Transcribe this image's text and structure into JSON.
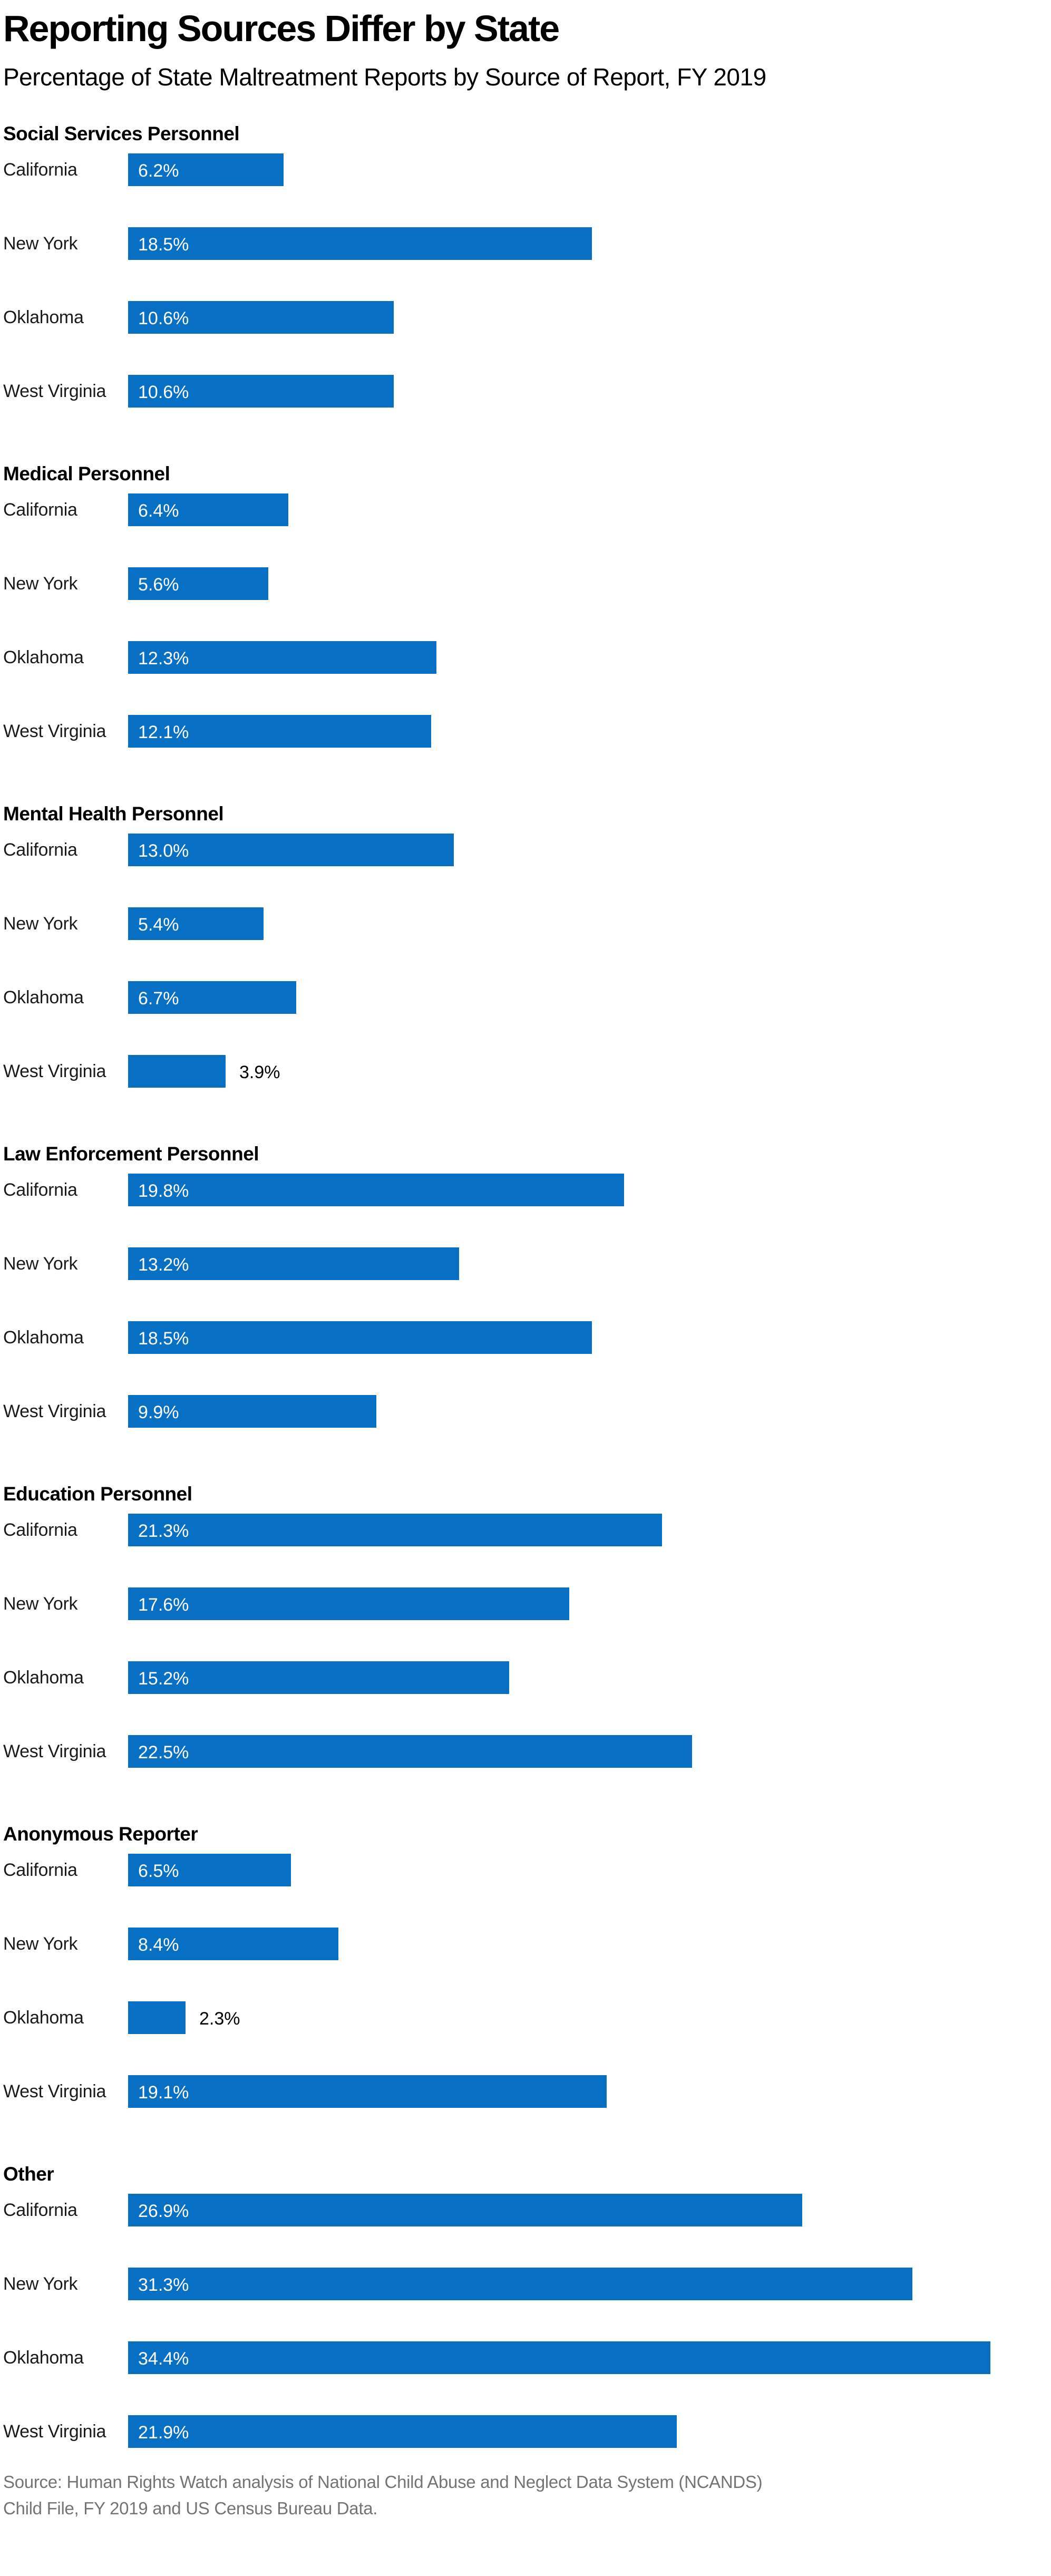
{
  "title": "Reporting Sources Differ by State",
  "subtitle": "Percentage of State Maltreatment Reports by Source of Report, FY 2019",
  "source": {
    "line1": "Source: Human Rights Watch analysis of National Child Abuse and Neglect Data System (NCANDS)",
    "line2": "Child File, FY 2019 and US Census Bureau Data."
  },
  "colors": {
    "bar": "#0770c4",
    "title_text": "#000000",
    "state_label_text": "#1a1a1a",
    "value_label_inside": "#ffffff",
    "value_label_outside": "#000000",
    "source_text": "#747474"
  },
  "chart_data": {
    "type": "bar",
    "orientation": "horizontal",
    "title": "Reporting Sources Differ by State",
    "subtitle": "Percentage of State Maltreatment Reports by Source of Report, FY 2019",
    "unit": "%",
    "xlim": [
      0,
      35
    ],
    "grid": false,
    "legend": false,
    "value_labels": true,
    "categories": [
      "California",
      "New York",
      "Oklahoma",
      "West Virginia"
    ],
    "groups": [
      {
        "heading": "Social Services Personnel",
        "rows": [
          {
            "state": "California",
            "value": 6.2,
            "value_label": "6.2%"
          },
          {
            "state": "New York",
            "value": 18.5,
            "value_label": "18.5%"
          },
          {
            "state": "Oklahoma",
            "value": 10.6,
            "value_label": "10.6%"
          },
          {
            "state": "West Virginia",
            "value": 10.6,
            "value_label": "10.6%"
          }
        ]
      },
      {
        "heading": "Medical Personnel",
        "rows": [
          {
            "state": "California",
            "value": 6.4,
            "value_label": "6.4%"
          },
          {
            "state": "New York",
            "value": 5.6,
            "value_label": "5.6%"
          },
          {
            "state": "Oklahoma",
            "value": 12.3,
            "value_label": "12.3%"
          },
          {
            "state": "West Virginia",
            "value": 12.1,
            "value_label": "12.1%"
          }
        ]
      },
      {
        "heading": "Mental Health Personnel",
        "rows": [
          {
            "state": "California",
            "value": 13.0,
            "value_label": "13.0%"
          },
          {
            "state": "New York",
            "value": 5.4,
            "value_label": "5.4%"
          },
          {
            "state": "Oklahoma",
            "value": 6.7,
            "value_label": "6.7%"
          },
          {
            "state": "West Virginia",
            "value": 3.9,
            "value_label": "3.9%"
          }
        ]
      },
      {
        "heading": "Law Enforcement Personnel",
        "rows": [
          {
            "state": "California",
            "value": 19.8,
            "value_label": "19.8%"
          },
          {
            "state": "New York",
            "value": 13.2,
            "value_label": "13.2%"
          },
          {
            "state": "Oklahoma",
            "value": 18.5,
            "value_label": "18.5%"
          },
          {
            "state": "West Virginia",
            "value": 9.9,
            "value_label": "9.9%"
          }
        ]
      },
      {
        "heading": "Education Personnel",
        "rows": [
          {
            "state": "California",
            "value": 21.3,
            "value_label": "21.3%"
          },
          {
            "state": "New York",
            "value": 17.6,
            "value_label": "17.6%"
          },
          {
            "state": "Oklahoma",
            "value": 15.2,
            "value_label": "15.2%"
          },
          {
            "state": "West Virginia",
            "value": 22.5,
            "value_label": "22.5%"
          }
        ]
      },
      {
        "heading": "Anonymous Reporter",
        "rows": [
          {
            "state": "California",
            "value": 6.5,
            "value_label": "6.5%"
          },
          {
            "state": "New York",
            "value": 8.4,
            "value_label": "8.4%"
          },
          {
            "state": "Oklahoma",
            "value": 2.3,
            "value_label": "2.3%"
          },
          {
            "state": "West Virginia",
            "value": 19.1,
            "value_label": "19.1%"
          }
        ]
      },
      {
        "heading": "Other",
        "rows": [
          {
            "state": "California",
            "value": 26.9,
            "value_label": "26.9%"
          },
          {
            "state": "New York",
            "value": 31.3,
            "value_label": "31.3%"
          },
          {
            "state": "Oklahoma",
            "value": 34.4,
            "value_label": "34.4%"
          },
          {
            "state": "West Virginia",
            "value": 21.9,
            "value_label": "21.9%"
          }
        ]
      }
    ]
  }
}
